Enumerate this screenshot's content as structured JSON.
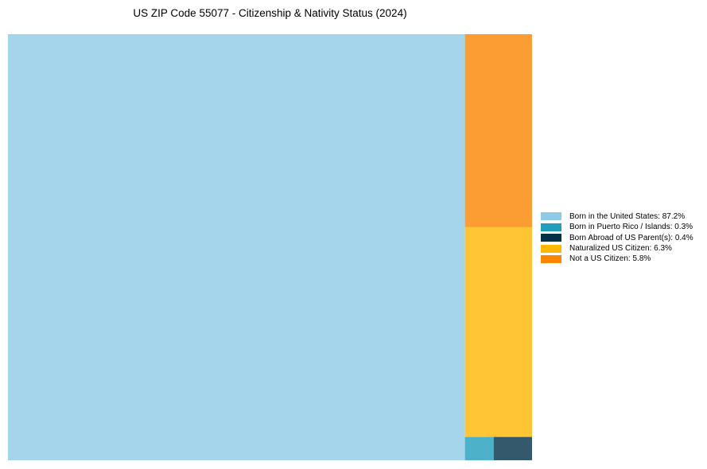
{
  "chart_data": {
    "type": "treemap",
    "title": "US ZIP Code 55077 - Citizenship & Nativity Status (2024)",
    "items": [
      {
        "name": "Born in the United States",
        "value": 87.2,
        "color": "#8ecae6",
        "label": "Born in the United States: 87.2%"
      },
      {
        "name": "Born in Puerto Rico / Islands",
        "value": 0.3,
        "color": "#219ebc",
        "label": "Born in Puerto Rico / Islands: 0.3%"
      },
      {
        "name": "Born Abroad of US Parent(s)",
        "value": 0.4,
        "color": "#023047",
        "label": "Born Abroad of US Parent(s): 0.4%"
      },
      {
        "name": "Naturalized US Citizen",
        "value": 6.3,
        "color": "#ffb703",
        "label": "Naturalized US Citizen: 6.3%"
      },
      {
        "name": "Not a US Citizen",
        "value": 5.8,
        "color": "#fb8500",
        "label": "Not a US Citizen: 5.8%"
      }
    ],
    "legend_position": "right"
  }
}
